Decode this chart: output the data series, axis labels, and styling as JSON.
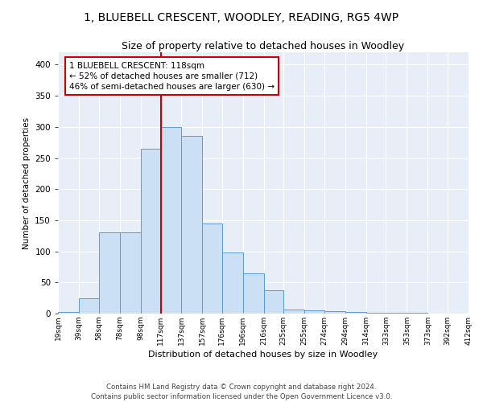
{
  "title": "1, BLUEBELL CRESCENT, WOODLEY, READING, RG5 4WP",
  "subtitle": "Size of property relative to detached houses in Woodley",
  "xlabel": "Distribution of detached houses by size in Woodley",
  "ylabel": "Number of detached properties",
  "bin_labels": [
    "19sqm",
    "39sqm",
    "58sqm",
    "78sqm",
    "98sqm",
    "117sqm",
    "137sqm",
    "157sqm",
    "176sqm",
    "196sqm",
    "216sqm",
    "235sqm",
    "255sqm",
    "274sqm",
    "294sqm",
    "314sqm",
    "333sqm",
    "353sqm",
    "373sqm",
    "392sqm",
    "412sqm"
  ],
  "bin_edges": [
    19,
    39,
    58,
    78,
    98,
    117,
    137,
    157,
    176,
    196,
    216,
    235,
    255,
    274,
    294,
    314,
    333,
    353,
    373,
    392,
    412
  ],
  "bar_heights": [
    3,
    25,
    130,
    130,
    265,
    300,
    285,
    145,
    98,
    65,
    37,
    7,
    5,
    4,
    2,
    1,
    1,
    1,
    0,
    0,
    0
  ],
  "bar_color": "#cce0f5",
  "bar_edge_color": "#5b9bd5",
  "vline_x": 118,
  "vline_color": "#cc0000",
  "annotation_text": "1 BLUEBELL CRESCENT: 118sqm\n← 52% of detached houses are smaller (712)\n46% of semi-detached houses are larger (630) →",
  "annotation_box_color": "#ffffff",
  "annotation_box_edge_color": "#cc0000",
  "ylim": [
    0,
    420
  ],
  "yticks": [
    0,
    50,
    100,
    150,
    200,
    250,
    300,
    350,
    400
  ],
  "bg_color": "#e8eef8",
  "footer_text": "Contains HM Land Registry data © Crown copyright and database right 2024.\nContains public sector information licensed under the Open Government Licence v3.0.",
  "title_fontsize": 10,
  "subtitle_fontsize": 9
}
